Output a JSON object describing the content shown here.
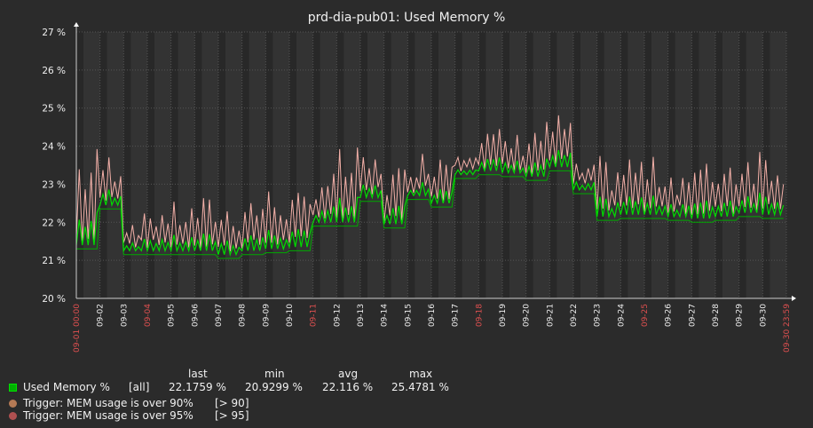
{
  "chart_data": {
    "type": "line",
    "title": "prd-dia-pub01: Used Memory %",
    "y_unit": " %",
    "ylim": [
      20,
      27
    ],
    "yticks": [
      20,
      21,
      22,
      23,
      24,
      25,
      26,
      27
    ],
    "xlim": [
      "2024-09-01 00:00",
      "2024-09-30 23:59"
    ],
    "x_tick_labels": [
      "09-01 00:00",
      "09-02",
      "09-03",
      "09-04",
      "09-05",
      "09-06",
      "09-07",
      "09-08",
      "09-09",
      "09-10",
      "09-11",
      "09-12",
      "09-13",
      "09-14",
      "09-15",
      "09-16",
      "09-17",
      "09-18",
      "09-19",
      "09-20",
      "09-21",
      "09-22",
      "09-23",
      "09-24",
      "09-25",
      "09-26",
      "09-27",
      "09-28",
      "09-29",
      "09-30",
      "09-30 23:59"
    ],
    "x_tick_red": [
      true,
      false,
      false,
      true,
      false,
      false,
      false,
      false,
      false,
      false,
      true,
      false,
      false,
      false,
      false,
      false,
      false,
      true,
      false,
      false,
      false,
      false,
      false,
      false,
      true,
      false,
      false,
      false,
      false,
      false,
      true
    ],
    "grid": true,
    "series": [
      {
        "name": "Used Memory %",
        "color": "#00dd00",
        "daily_baseline": [
          21.35,
          22.4,
          21.2,
          21.2,
          21.2,
          21.2,
          21.1,
          21.2,
          21.25,
          21.3,
          21.95,
          21.95,
          22.6,
          21.9,
          22.65,
          22.45,
          23.2,
          23.3,
          23.25,
          23.15,
          23.4,
          22.8,
          22.1,
          22.15,
          22.15,
          22.1,
          22.05,
          22.1,
          22.2,
          22.15
        ],
        "daily_peak_mean": [
          23.2,
          23.4,
          21.9,
          22.1,
          22.1,
          22.2,
          22.1,
          22.3,
          22.4,
          22.3,
          23.0,
          23.3,
          23.4,
          23.0,
          23.5,
          23.6,
          23.9,
          24.1,
          24.0,
          24.2,
          24.4,
          23.3,
          23.2,
          23.3,
          23.2,
          23.1,
          23.1,
          23.3,
          23.5,
          23.5
        ],
        "last": "22.1759 %",
        "min": "20.9299 %",
        "avg": "22.116 %",
        "max": "25.4781 %",
        "function": "[all]"
      }
    ],
    "triggers": [
      {
        "label": "Trigger: MEM usage is over 90%",
        "threshold": "[> 90]",
        "color": "#b57a55"
      },
      {
        "label": "Trigger: MEM usage is over 95%",
        "threshold": "[> 95]",
        "color": "#b05050"
      }
    ],
    "legend": {
      "headers": [
        "last",
        "min",
        "avg",
        "max"
      ]
    },
    "colors": {
      "background": "#2b2b2b",
      "plot_bg": "#333333",
      "grid": "#555555",
      "max_line": "#f3b0a8",
      "avg_line": "#00dd00",
      "min_line": "#00aa00"
    }
  }
}
